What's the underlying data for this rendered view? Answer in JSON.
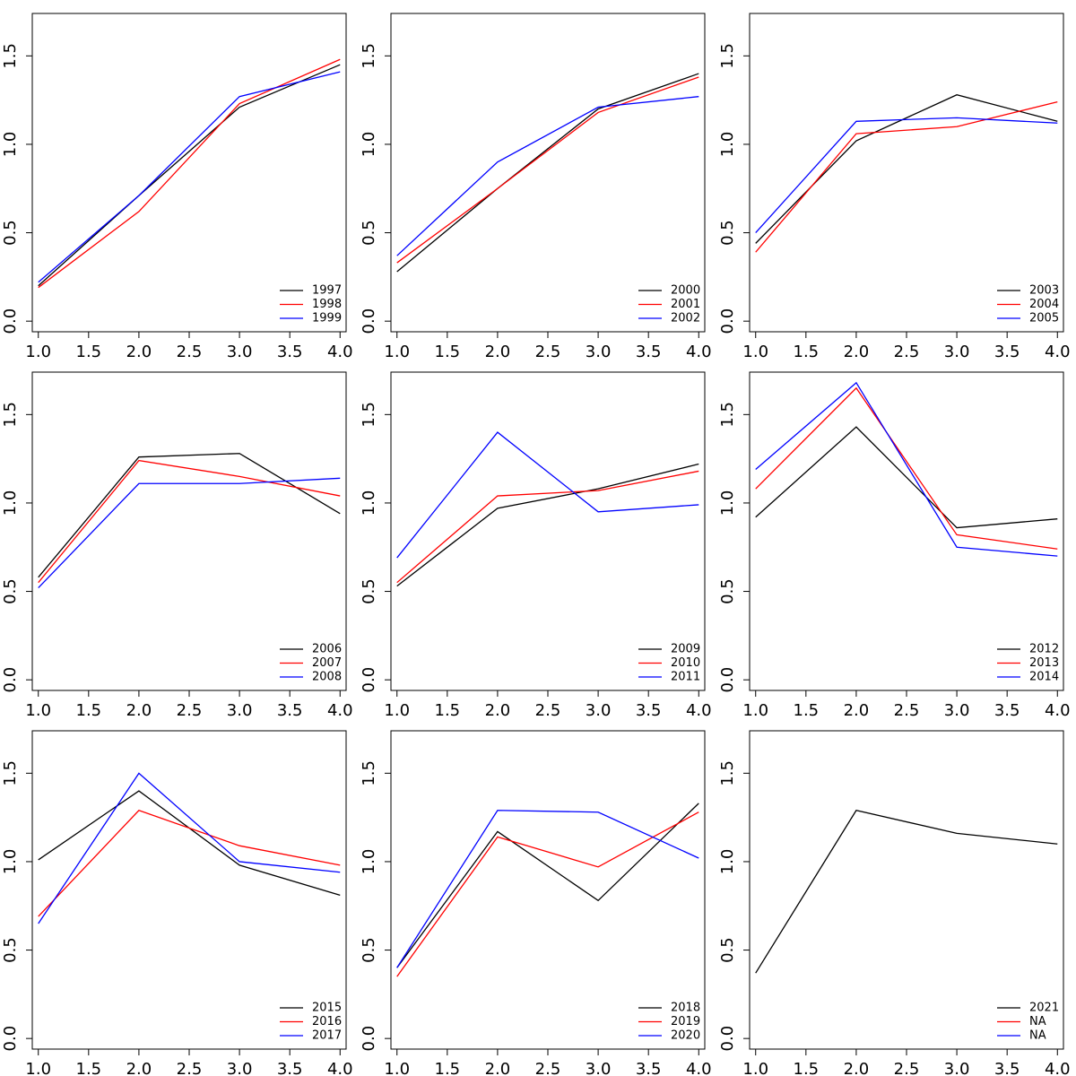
{
  "chart_data": [
    {
      "type": "line",
      "x": [
        1,
        2,
        3,
        4
      ],
      "xlim": [
        0.94,
        4.06
      ],
      "ylim": [
        -0.06,
        1.74
      ],
      "xticks": [
        {
          "value": 1,
          "label": "1.0"
        },
        1.5,
        {
          "value": 2,
          "label": "2.0"
        },
        2.5,
        {
          "value": 3,
          "label": "3.0"
        },
        3.5,
        {
          "value": 4,
          "label": "4.0"
        }
      ],
      "yticks": [
        {
          "value": 0,
          "label": "0.0"
        },
        0.5,
        {
          "value": 1,
          "label": "1.0"
        },
        1.5
      ],
      "legend": "bottom-right",
      "series": [
        {
          "name": "1997",
          "color": "#000000",
          "values": [
            0.2,
            0.71,
            1.21,
            1.45
          ]
        },
        {
          "name": "1998",
          "color": "#ff0000",
          "values": [
            0.19,
            0.62,
            1.23,
            1.48
          ]
        },
        {
          "name": "1999",
          "color": "#0000ff",
          "values": [
            0.22,
            0.71,
            1.27,
            1.41
          ]
        }
      ]
    },
    {
      "type": "line",
      "x": [
        1,
        2,
        3,
        4
      ],
      "xlim": [
        0.94,
        4.06
      ],
      "ylim": [
        -0.06,
        1.74
      ],
      "xticks": [
        {
          "value": 1,
          "label": "1.0"
        },
        1.5,
        {
          "value": 2,
          "label": "2.0"
        },
        2.5,
        {
          "value": 3,
          "label": "3.0"
        },
        3.5,
        {
          "value": 4,
          "label": "4.0"
        }
      ],
      "yticks": [
        {
          "value": 0,
          "label": "0.0"
        },
        0.5,
        {
          "value": 1,
          "label": "1.0"
        },
        1.5
      ],
      "legend": "bottom-right",
      "series": [
        {
          "name": "2000",
          "color": "#000000",
          "values": [
            0.28,
            0.75,
            1.2,
            1.4
          ]
        },
        {
          "name": "2001",
          "color": "#ff0000",
          "values": [
            0.33,
            0.75,
            1.18,
            1.38
          ]
        },
        {
          "name": "2002",
          "color": "#0000ff",
          "values": [
            0.37,
            0.9,
            1.21,
            1.27
          ]
        }
      ]
    },
    {
      "type": "line",
      "x": [
        1,
        2,
        3,
        4
      ],
      "xlim": [
        0.94,
        4.06
      ],
      "ylim": [
        -0.06,
        1.74
      ],
      "xticks": [
        {
          "value": 1,
          "label": "1.0"
        },
        1.5,
        {
          "value": 2,
          "label": "2.0"
        },
        2.5,
        {
          "value": 3,
          "label": "3.0"
        },
        3.5,
        {
          "value": 4,
          "label": "4.0"
        }
      ],
      "yticks": [
        {
          "value": 0,
          "label": "0.0"
        },
        0.5,
        {
          "value": 1,
          "label": "1.0"
        },
        1.5
      ],
      "legend": "bottom-right",
      "series": [
        {
          "name": "2003",
          "color": "#000000",
          "values": [
            0.44,
            1.02,
            1.28,
            1.13
          ]
        },
        {
          "name": "2004",
          "color": "#ff0000",
          "values": [
            0.39,
            1.06,
            1.1,
            1.24
          ]
        },
        {
          "name": "2005",
          "color": "#0000ff",
          "values": [
            0.5,
            1.13,
            1.15,
            1.12
          ]
        }
      ]
    },
    {
      "type": "line",
      "x": [
        1,
        2,
        3,
        4
      ],
      "xlim": [
        0.94,
        4.06
      ],
      "ylim": [
        -0.06,
        1.74
      ],
      "xticks": [
        {
          "value": 1,
          "label": "1.0"
        },
        1.5,
        {
          "value": 2,
          "label": "2.0"
        },
        2.5,
        {
          "value": 3,
          "label": "3.0"
        },
        3.5,
        {
          "value": 4,
          "label": "4.0"
        }
      ],
      "yticks": [
        {
          "value": 0,
          "label": "0.0"
        },
        0.5,
        {
          "value": 1,
          "label": "1.0"
        },
        1.5
      ],
      "legend": "bottom-right",
      "series": [
        {
          "name": "2006",
          "color": "#000000",
          "values": [
            0.58,
            1.26,
            1.28,
            0.94
          ]
        },
        {
          "name": "2007",
          "color": "#ff0000",
          "values": [
            0.55,
            1.24,
            1.15,
            1.04
          ]
        },
        {
          "name": "2008",
          "color": "#0000ff",
          "values": [
            0.52,
            1.11,
            1.11,
            1.14
          ]
        }
      ]
    },
    {
      "type": "line",
      "x": [
        1,
        2,
        3,
        4
      ],
      "xlim": [
        0.94,
        4.06
      ],
      "ylim": [
        -0.06,
        1.74
      ],
      "xticks": [
        {
          "value": 1,
          "label": "1.0"
        },
        1.5,
        {
          "value": 2,
          "label": "2.0"
        },
        2.5,
        {
          "value": 3,
          "label": "3.0"
        },
        3.5,
        {
          "value": 4,
          "label": "4.0"
        }
      ],
      "yticks": [
        {
          "value": 0,
          "label": "0.0"
        },
        0.5,
        {
          "value": 1,
          "label": "1.0"
        },
        1.5
      ],
      "legend": "bottom-right",
      "series": [
        {
          "name": "2009",
          "color": "#000000",
          "values": [
            0.53,
            0.97,
            1.08,
            1.22
          ]
        },
        {
          "name": "2010",
          "color": "#ff0000",
          "values": [
            0.55,
            1.04,
            1.07,
            1.18
          ]
        },
        {
          "name": "2011",
          "color": "#0000ff",
          "values": [
            0.69,
            1.4,
            0.95,
            0.99
          ]
        }
      ]
    },
    {
      "type": "line",
      "x": [
        1,
        2,
        3,
        4
      ],
      "xlim": [
        0.94,
        4.06
      ],
      "ylim": [
        -0.06,
        1.74
      ],
      "xticks": [
        {
          "value": 1,
          "label": "1.0"
        },
        1.5,
        {
          "value": 2,
          "label": "2.0"
        },
        2.5,
        {
          "value": 3,
          "label": "3.0"
        },
        3.5,
        {
          "value": 4,
          "label": "4.0"
        }
      ],
      "yticks": [
        {
          "value": 0,
          "label": "0.0"
        },
        0.5,
        {
          "value": 1,
          "label": "1.0"
        },
        1.5
      ],
      "legend": "bottom-right",
      "series": [
        {
          "name": "2012",
          "color": "#000000",
          "values": [
            0.92,
            1.43,
            0.86,
            0.91
          ]
        },
        {
          "name": "2013",
          "color": "#ff0000",
          "values": [
            1.08,
            1.65,
            0.82,
            0.74
          ]
        },
        {
          "name": "2014",
          "color": "#0000ff",
          "values": [
            1.19,
            1.68,
            0.75,
            0.7
          ]
        }
      ]
    },
    {
      "type": "line",
      "x": [
        1,
        2,
        3,
        4
      ],
      "xlim": [
        0.94,
        4.06
      ],
      "ylim": [
        -0.06,
        1.74
      ],
      "xticks": [
        {
          "value": 1,
          "label": "1.0"
        },
        1.5,
        {
          "value": 2,
          "label": "2.0"
        },
        2.5,
        {
          "value": 3,
          "label": "3.0"
        },
        3.5,
        {
          "value": 4,
          "label": "4.0"
        }
      ],
      "yticks": [
        {
          "value": 0,
          "label": "0.0"
        },
        0.5,
        {
          "value": 1,
          "label": "1.0"
        },
        1.5
      ],
      "legend": "bottom-right",
      "series": [
        {
          "name": "2015",
          "color": "#000000",
          "values": [
            1.01,
            1.4,
            0.98,
            0.81
          ]
        },
        {
          "name": "2016",
          "color": "#ff0000",
          "values": [
            0.69,
            1.29,
            1.09,
            0.98
          ]
        },
        {
          "name": "2017",
          "color": "#0000ff",
          "values": [
            0.65,
            1.5,
            1.0,
            0.94
          ]
        }
      ]
    },
    {
      "type": "line",
      "x": [
        1,
        2,
        3,
        4
      ],
      "xlim": [
        0.94,
        4.06
      ],
      "ylim": [
        -0.06,
        1.74
      ],
      "xticks": [
        {
          "value": 1,
          "label": "1.0"
        },
        1.5,
        {
          "value": 2,
          "label": "2.0"
        },
        2.5,
        {
          "value": 3,
          "label": "3.0"
        },
        3.5,
        {
          "value": 4,
          "label": "4.0"
        }
      ],
      "yticks": [
        {
          "value": 0,
          "label": "0.0"
        },
        0.5,
        {
          "value": 1,
          "label": "1.0"
        },
        1.5
      ],
      "legend": "bottom-right",
      "series": [
        {
          "name": "2018",
          "color": "#000000",
          "values": [
            0.4,
            1.17,
            0.78,
            1.33
          ]
        },
        {
          "name": "2019",
          "color": "#ff0000",
          "values": [
            0.35,
            1.14,
            0.97,
            1.28
          ]
        },
        {
          "name": "2020",
          "color": "#0000ff",
          "values": [
            0.4,
            1.29,
            1.28,
            1.02
          ]
        }
      ]
    },
    {
      "type": "line",
      "x": [
        1,
        2,
        3,
        4
      ],
      "xlim": [
        0.94,
        4.06
      ],
      "ylim": [
        -0.06,
        1.74
      ],
      "xticks": [
        {
          "value": 1,
          "label": "1.0"
        },
        1.5,
        {
          "value": 2,
          "label": "2.0"
        },
        2.5,
        {
          "value": 3,
          "label": "3.0"
        },
        3.5,
        {
          "value": 4,
          "label": "4.0"
        }
      ],
      "yticks": [
        {
          "value": 0,
          "label": "0.0"
        },
        0.5,
        {
          "value": 1,
          "label": "1.0"
        },
        1.5
      ],
      "legend": "bottom-right",
      "series": [
        {
          "name": "2021",
          "color": "#000000",
          "values": [
            0.37,
            1.29,
            1.16,
            1.1
          ]
        },
        {
          "name": "NA",
          "color": "#ff0000",
          "values": [
            null,
            null,
            null,
            null
          ]
        },
        {
          "name": "NA",
          "color": "#0000ff",
          "values": [
            null,
            null,
            null,
            null
          ]
        }
      ]
    }
  ]
}
